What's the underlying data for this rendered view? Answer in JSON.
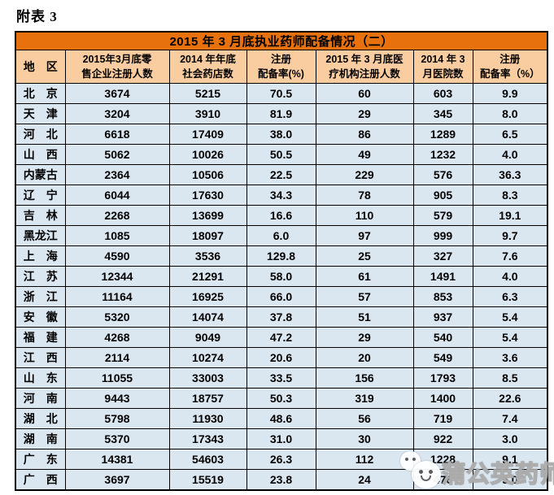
{
  "page_title": "附表 3",
  "colors": {
    "title_band": "#E6710D",
    "header_bg": "#FACDA0",
    "row_bg": "#DAE6F0",
    "border": "#000000"
  },
  "table": {
    "title": "2015 年 3 月底执业药师配备情况（二）",
    "columns": [
      {
        "l1": "地　区",
        "l2": ""
      },
      {
        "l1": "2015年3月底零",
        "l2": "售企业注册人数"
      },
      {
        "l1": "2014 年年底",
        "l2": "社会药店数"
      },
      {
        "l1": "注册",
        "l2": "配备率(%)"
      },
      {
        "l1": "2015 年 3 月底医",
        "l2": "疗机构注册人数"
      },
      {
        "l1": "2014 年 3",
        "l2": "月医院数"
      },
      {
        "l1": "注册",
        "l2": "配备率（%）"
      }
    ],
    "rows": [
      [
        "北　京",
        "3674",
        "5215",
        "70.5",
        "60",
        "603",
        "9.9"
      ],
      [
        "天　津",
        "3204",
        "3910",
        "81.9",
        "29",
        "345",
        "8.0"
      ],
      [
        "河　北",
        "6618",
        "17409",
        "38.0",
        "86",
        "1289",
        "6.5"
      ],
      [
        "山　西",
        "5062",
        "10026",
        "50.5",
        "49",
        "1232",
        "4.0"
      ],
      [
        "内蒙古",
        "2364",
        "10506",
        "22.5",
        "229",
        "576",
        "36.3"
      ],
      [
        "辽　宁",
        "6044",
        "17630",
        "34.3",
        "78",
        "905",
        "8.3"
      ],
      [
        "吉　林",
        "2268",
        "13699",
        "16.6",
        "110",
        "579",
        "19.1"
      ],
      [
        "黑龙江",
        "1085",
        "18097",
        "6.0",
        "97",
        "999",
        "9.7"
      ],
      [
        "上　海",
        "4590",
        "3536",
        "129.8",
        "25",
        "327",
        "7.6"
      ],
      [
        "江　苏",
        "12344",
        "21291",
        "58.0",
        "61",
        "1491",
        "4.0"
      ],
      [
        "浙　江",
        "11164",
        "16925",
        "66.0",
        "57",
        "853",
        "6.3"
      ],
      [
        "安　徽",
        "5320",
        "14074",
        "37.8",
        "51",
        "937",
        "5.4"
      ],
      [
        "福　建",
        "4268",
        "9049",
        "47.2",
        "29",
        "540",
        "5.4"
      ],
      [
        "江　西",
        "2114",
        "10274",
        "20.6",
        "20",
        "549",
        "3.6"
      ],
      [
        "山　东",
        "11055",
        "33003",
        "33.5",
        "156",
        "1793",
        "8.5"
      ],
      [
        "河　南",
        "9443",
        "18757",
        "50.3",
        "319",
        "1400",
        "22.6"
      ],
      [
        "湖　北",
        "5798",
        "11930",
        "48.6",
        "56",
        "719",
        "7.4"
      ],
      [
        "湖　南",
        "5370",
        "17343",
        "31.0",
        "30",
        "922",
        "3.0"
      ],
      [
        "广　东",
        "14381",
        "54603",
        "26.3",
        "112",
        "1228",
        "9.1"
      ],
      [
        "广　西",
        "3697",
        "15519",
        "23.8",
        "24",
        "476",
        "5.0"
      ]
    ]
  },
  "watermark": {
    "text": "蒲公英药师",
    "logo": "wechat-bubbles-face-logo"
  },
  "chart_data": {
    "type": "table",
    "title": "2015 年 3 月底执业药师配备情况（二）",
    "categories": [
      "北京",
      "天津",
      "河北",
      "山西",
      "内蒙古",
      "辽宁",
      "吉林",
      "黑龙江",
      "上海",
      "江苏",
      "浙江",
      "安徽",
      "福建",
      "江西",
      "山东",
      "河南",
      "湖北",
      "湖南",
      "广东",
      "广西"
    ],
    "series": [
      {
        "name": "2015年3月底零售企业注册人数",
        "values": [
          3674,
          3204,
          6618,
          5062,
          2364,
          6044,
          2268,
          1085,
          4590,
          12344,
          11164,
          5320,
          4268,
          2114,
          11055,
          9443,
          5798,
          5370,
          14381,
          3697
        ]
      },
      {
        "name": "2014年年底社会药店数",
        "values": [
          5215,
          3910,
          17409,
          10026,
          10506,
          17630,
          13699,
          18097,
          3536,
          21291,
          16925,
          14074,
          9049,
          10274,
          33003,
          18757,
          11930,
          17343,
          54603,
          15519
        ]
      },
      {
        "name": "注册配备率(%)",
        "values": [
          70.5,
          81.9,
          38.0,
          50.5,
          22.5,
          34.3,
          16.6,
          6.0,
          129.8,
          58.0,
          66.0,
          37.8,
          47.2,
          20.6,
          33.5,
          50.3,
          48.6,
          31.0,
          26.3,
          23.8
        ]
      },
      {
        "name": "2015年3月底医疗机构注册人数",
        "values": [
          60,
          29,
          86,
          49,
          229,
          78,
          110,
          97,
          25,
          61,
          57,
          51,
          29,
          20,
          156,
          319,
          56,
          30,
          112,
          24
        ]
      },
      {
        "name": "2014年3月医院数",
        "values": [
          603,
          345,
          1289,
          1232,
          576,
          905,
          579,
          999,
          327,
          1491,
          853,
          937,
          540,
          549,
          1793,
          1400,
          719,
          922,
          1228,
          476
        ]
      },
      {
        "name": "注册配备率（%）",
        "values": [
          9.9,
          8.0,
          6.5,
          4.0,
          36.3,
          8.3,
          19.1,
          9.7,
          7.6,
          4.0,
          6.3,
          5.4,
          5.4,
          3.6,
          8.5,
          22.6,
          7.4,
          3.0,
          9.1,
          5.0
        ]
      }
    ]
  }
}
